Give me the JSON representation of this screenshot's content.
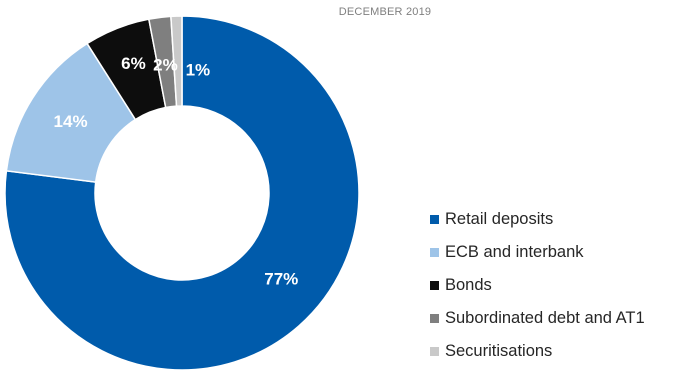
{
  "chart_data": {
    "type": "pie",
    "title": "DECEMBER 2019",
    "series": [
      {
        "name": "Retail deposits",
        "value": 77,
        "label": "77%",
        "color": "#005bab",
        "label_color": "#ffffff"
      },
      {
        "name": "ECB and interbank",
        "value": 14,
        "label": "14%",
        "color": "#9ec4e8",
        "label_color": "#ffffff"
      },
      {
        "name": "Bonds",
        "value": 6,
        "label": "6%",
        "color": "#0d0d0d",
        "label_color": "#ffffff"
      },
      {
        "name": "Subordinated debt and AT1",
        "value": 2,
        "label": "2%",
        "color": "#7f7f7f",
        "label_color": "#ffffff"
      },
      {
        "name": "Securitisations",
        "value": 1,
        "label": "1%",
        "color": "#c9c9c9",
        "label_color": "#ffffff"
      }
    ],
    "legend_position": "right",
    "style": "donut"
  }
}
